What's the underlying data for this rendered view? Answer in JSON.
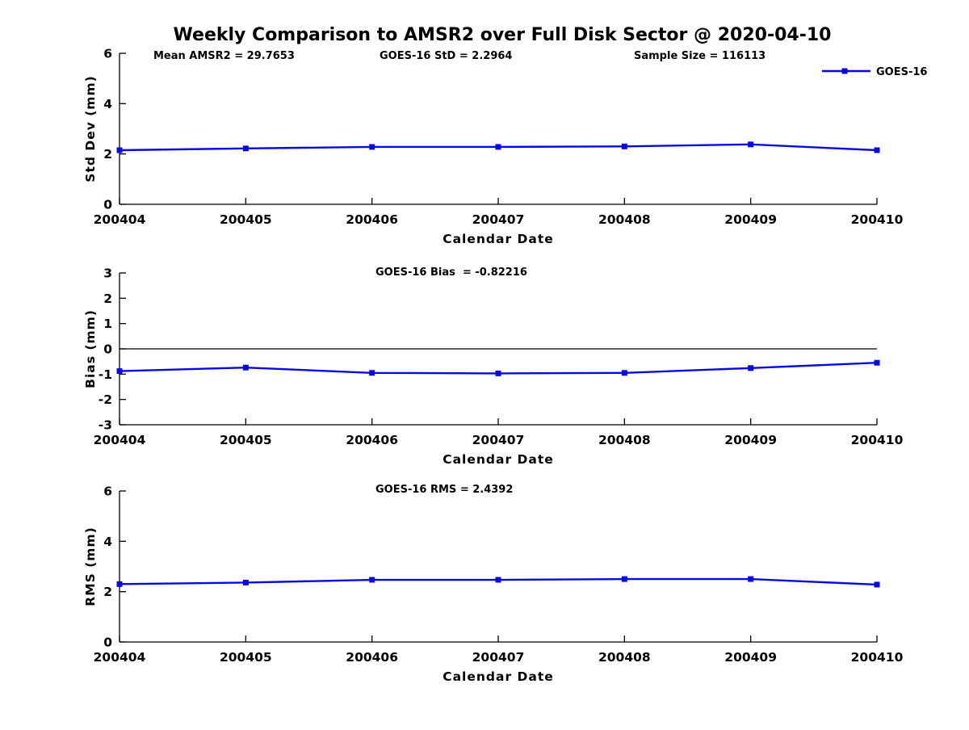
{
  "title": "Weekly Comparison to AMSR2 over Full Disk Sector @ 2020-04-10",
  "header_stats": {
    "mean_amsr2": "Mean AMSR2 = 29.7653",
    "goes16_std": "GOES-16 StD = 2.2964",
    "sample_size": "Sample Size = 116113"
  },
  "legend": {
    "label": "GOES-16"
  },
  "colors": {
    "series": "#0808e0",
    "axis": "#000000"
  },
  "chart_data": [
    {
      "type": "line",
      "name": "std_dev",
      "annotation": "",
      "x": [
        "200404",
        "200405",
        "200406",
        "200407",
        "200408",
        "200409",
        "200410"
      ],
      "series": [
        {
          "name": "GOES-16",
          "marker": "square",
          "values": [
            2.15,
            2.22,
            2.28,
            2.28,
            2.3,
            2.38,
            2.15
          ]
        }
      ],
      "xlabel": "Calendar Date",
      "ylabel": "Std Dev (mm)",
      "ylim": [
        0,
        6
      ],
      "yticks": [
        0,
        2,
        4,
        6
      ],
      "zero_line": false,
      "grid": false,
      "legend_position": "top-right"
    },
    {
      "type": "line",
      "name": "bias",
      "annotation": "GOES-16 Bias  = -0.82216",
      "x": [
        "200404",
        "200405",
        "200406",
        "200407",
        "200408",
        "200409",
        "200410"
      ],
      "series": [
        {
          "name": "GOES-16",
          "marker": "square",
          "values": [
            -0.88,
            -0.74,
            -0.95,
            -0.97,
            -0.95,
            -0.76,
            -0.55
          ]
        }
      ],
      "xlabel": "Calendar Date",
      "ylabel": "Bias (mm)",
      "ylim": [
        -3,
        3
      ],
      "yticks": [
        -3,
        -2,
        -1,
        0,
        1,
        2,
        3
      ],
      "zero_line": true,
      "grid": false
    },
    {
      "type": "line",
      "name": "rms",
      "annotation": "GOES-16 RMS = 2.4392",
      "x": [
        "200404",
        "200405",
        "200406",
        "200407",
        "200408",
        "200409",
        "200410"
      ],
      "series": [
        {
          "name": "GOES-16",
          "marker": "square",
          "values": [
            2.3,
            2.36,
            2.47,
            2.47,
            2.5,
            2.5,
            2.28
          ]
        }
      ],
      "xlabel": "Calendar Date",
      "ylabel": "RMS (mm)",
      "ylim": [
        0,
        6
      ],
      "yticks": [
        0,
        2,
        4,
        6
      ],
      "zero_line": false,
      "grid": false
    }
  ]
}
